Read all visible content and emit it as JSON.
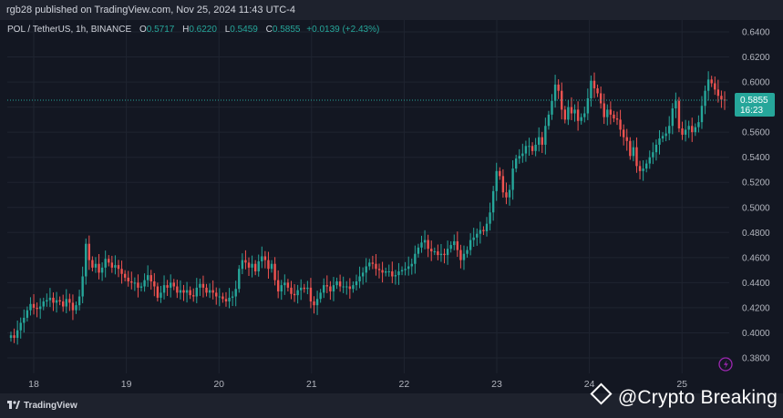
{
  "header": {
    "published": "rgb28 published on TradingView.com, Nov 25, 2024 11:43 UTC-4"
  },
  "legend": {
    "symbol": "POL / TetherUS, 1h, BINANCE",
    "o_label": "O",
    "o_value": "0.5717",
    "h_label": "H",
    "h_value": "0.6220",
    "l_label": "L",
    "l_value": "0.5459",
    "c_label": "C",
    "c_value": "0.5855",
    "change": "+0.0139 (+2.43%)"
  },
  "price_label": {
    "price": "0.5855",
    "countdown": "16:23"
  },
  "footer": {
    "logo_text": "TradingView",
    "watermark": "@Crypto Breaking"
  },
  "colors": {
    "up": "#26a69a",
    "down": "#ef5350",
    "background": "#131722",
    "grid": "#1f2430",
    "axis_text": "#b2b5be",
    "price_label_bg": "#26a69a"
  },
  "icons": {
    "alert": "lightning-icon"
  },
  "chart_data": {
    "type": "candlestick",
    "title": "POL / TetherUS, 1h, BINANCE",
    "xlabel": "",
    "ylabel": "",
    "ylim": [
      0.37,
      0.645
    ],
    "y_ticks": [
      "0.6400",
      "0.6200",
      "0.6000",
      "0.5800",
      "0.5600",
      "0.5400",
      "0.5200",
      "0.5000",
      "0.4800",
      "0.4600",
      "0.4400",
      "0.4200",
      "0.4000",
      "0.3800"
    ],
    "x_ticks": [
      "18",
      "19",
      "20",
      "21",
      "22",
      "23",
      "24",
      "25"
    ],
    "x_tick_positions_in_days": [
      0,
      1,
      2,
      3,
      4,
      5,
      6,
      7
    ],
    "last_close": 0.5855,
    "grid": true,
    "closes": [
      0.398,
      0.396,
      0.402,
      0.408,
      0.412,
      0.418,
      0.423,
      0.42,
      0.419,
      0.421,
      0.425,
      0.426,
      0.428,
      0.424,
      0.426,
      0.425,
      0.421,
      0.427,
      0.424,
      0.418,
      0.422,
      0.429,
      0.445,
      0.471,
      0.458,
      0.452,
      0.455,
      0.448,
      0.452,
      0.459,
      0.456,
      0.452,
      0.454,
      0.451,
      0.447,
      0.444,
      0.441,
      0.44,
      0.44,
      0.436,
      0.437,
      0.442,
      0.446,
      0.441,
      0.437,
      0.428,
      0.432,
      0.438,
      0.436,
      0.44,
      0.437,
      0.432,
      0.434,
      0.432,
      0.434,
      0.43,
      0.429,
      0.436,
      0.439,
      0.436,
      0.432,
      0.434,
      0.432,
      0.429,
      0.429,
      0.427,
      0.425,
      0.428,
      0.429,
      0.435,
      0.451,
      0.458,
      0.456,
      0.452,
      0.455,
      0.449,
      0.457,
      0.461,
      0.458,
      0.451,
      0.455,
      0.442,
      0.433,
      0.438,
      0.44,
      0.436,
      0.431,
      0.43,
      0.434,
      0.436,
      0.435,
      0.436,
      0.425,
      0.422,
      0.427,
      0.432,
      0.438,
      0.437,
      0.433,
      0.438,
      0.441,
      0.437,
      0.437,
      0.437,
      0.435,
      0.438,
      0.441,
      0.445,
      0.448,
      0.453,
      0.456,
      0.455,
      0.451,
      0.45,
      0.448,
      0.449,
      0.449,
      0.445,
      0.446,
      0.449,
      0.45,
      0.451,
      0.453,
      0.455,
      0.463,
      0.468,
      0.472,
      0.474,
      0.467,
      0.465,
      0.465,
      0.462,
      0.463,
      0.462,
      0.467,
      0.47,
      0.473,
      0.466,
      0.458,
      0.463,
      0.466,
      0.474,
      0.476,
      0.479,
      0.482,
      0.481,
      0.487,
      0.496,
      0.513,
      0.529,
      0.525,
      0.512,
      0.508,
      0.514,
      0.531,
      0.539,
      0.541,
      0.543,
      0.549,
      0.549,
      0.545,
      0.55,
      0.556,
      0.55,
      0.565,
      0.574,
      0.585,
      0.598,
      0.593,
      0.578,
      0.57,
      0.58,
      0.575,
      0.578,
      0.569,
      0.572,
      0.575,
      0.587,
      0.601,
      0.595,
      0.591,
      0.583,
      0.572,
      0.578,
      0.574,
      0.571,
      0.57,
      0.562,
      0.556,
      0.553,
      0.541,
      0.548,
      0.533,
      0.529,
      0.531,
      0.535,
      0.54,
      0.544,
      0.55,
      0.555,
      0.557,
      0.559,
      0.565,
      0.579,
      0.585,
      0.563,
      0.558,
      0.562,
      0.565,
      0.56,
      0.564,
      0.568,
      0.581,
      0.593,
      0.602,
      0.599,
      0.594,
      0.589,
      0.586,
      0.5855
    ]
  }
}
